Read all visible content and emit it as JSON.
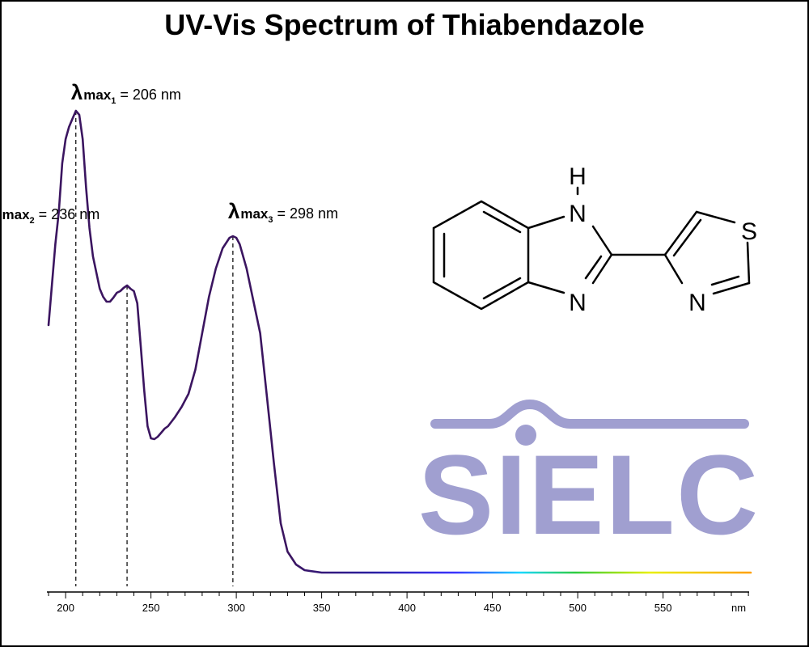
{
  "chart_data": {
    "type": "line",
    "title": "UV-Vis Spectrum of Thiabendazole",
    "xlabel": "",
    "x_unit": "nm",
    "ylabel": "",
    "xlim": [
      190,
      1000
    ],
    "xticks_major": [
      200,
      250,
      300,
      350,
      400,
      450,
      500,
      550
    ],
    "tick_minor_step": 10,
    "grid": false,
    "series": [
      {
        "x": [
          190,
          192,
          194,
          196,
          198,
          200,
          202,
          204,
          206,
          208,
          210,
          212,
          214,
          216,
          218,
          220,
          222,
          224,
          226,
          228,
          230,
          232,
          234,
          236,
          238,
          240,
          242,
          244,
          246,
          248,
          250,
          252,
          254,
          256,
          258,
          260,
          264,
          268,
          272,
          276,
          280,
          284,
          288,
          292,
          296,
          298,
          300,
          302,
          306,
          310,
          314,
          318,
          322,
          326,
          330,
          335,
          340,
          350,
          360,
          380,
          400,
          450,
          500,
          550,
          600,
          650,
          700,
          750,
          800,
          850,
          900,
          950,
          1000
        ],
        "y": [
          0.31,
          0.36,
          0.41,
          0.45,
          0.51,
          0.54,
          0.555,
          0.565,
          0.575,
          0.57,
          0.54,
          0.48,
          0.43,
          0.395,
          0.375,
          0.355,
          0.345,
          0.339,
          0.339,
          0.344,
          0.35,
          0.352,
          0.356,
          0.359,
          0.355,
          0.352,
          0.337,
          0.285,
          0.23,
          0.185,
          0.17,
          0.169,
          0.172,
          0.177,
          0.182,
          0.185,
          0.196,
          0.209,
          0.225,
          0.255,
          0.3,
          0.345,
          0.38,
          0.405,
          0.418,
          0.42,
          0.418,
          0.41,
          0.38,
          0.34,
          0.3,
          0.22,
          0.14,
          0.065,
          0.03,
          0.014,
          0.007,
          0.004,
          0.004,
          0.004,
          0.004,
          0.004,
          0.004,
          0.004,
          0.004,
          0.004,
          0.004,
          0.004,
          0.004,
          0.004,
          0.004,
          0.004,
          0.004
        ]
      }
    ],
    "annotations": [
      {
        "symbol": "λ",
        "sub": "max",
        "index": "1",
        "text": " = 206 nm",
        "x": 206
      },
      {
        "symbol": "λ",
        "sub": "max",
        "index": "2",
        "text": " = 236 nm",
        "x": 236
      },
      {
        "symbol": "λ",
        "sub": "max",
        "index": "3",
        "text": " = 298 nm",
        "x": 298
      }
    ]
  },
  "structure": {
    "atoms": {
      "nh_h": "H",
      "nh_n": "N",
      "n_imid": "N",
      "s": "S",
      "n_thiaz": "N"
    }
  },
  "logo": {
    "text": "SIELC",
    "color": "#a09fd0"
  },
  "colors": {
    "line": "#3b1560",
    "annotation": "#000000"
  }
}
